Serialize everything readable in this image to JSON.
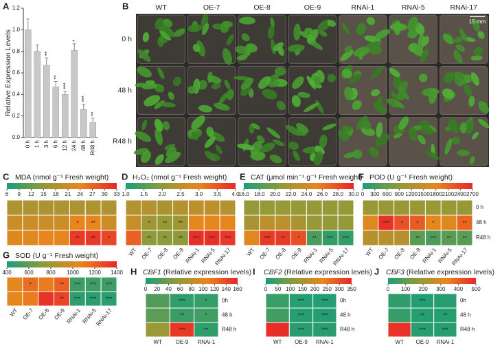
{
  "chart_data": [
    {
      "type": "bar",
      "panel": "A",
      "y_label": "Relative Expression Levels",
      "categories": [
        "0 h",
        "1 h",
        "3 h",
        "6 h",
        "12 h",
        "24 h",
        "48 h",
        "R48 h"
      ],
      "values": [
        1.0,
        0.8,
        0.67,
        0.47,
        0.4,
        0.81,
        0.26,
        0.14
      ],
      "errors": [
        0.1,
        0.06,
        0.07,
        0.05,
        0.03,
        0.06,
        0.05,
        0.04
      ],
      "annotations": [
        null,
        null,
        "**",
        "**",
        "***",
        "*",
        "***",
        "**"
      ],
      "ylim": [
        0,
        1.2
      ],
      "yticks": [
        {
          "value": 0,
          "label": "0.0"
        },
        {
          "value": 0.2,
          "label": "0.2"
        },
        {
          "value": 0.4,
          "label": "0.4"
        },
        {
          "value": 0.6,
          "label": "0.6"
        },
        {
          "value": 0.8,
          "label": "0.8"
        },
        {
          "value": 1.0,
          "label": "1.0"
        },
        {
          "value": 1.2,
          "label": "1.2"
        }
      ],
      "color": "#c8c8c8"
    },
    {
      "type": "image",
      "panel": "B",
      "columns": [
        "WT",
        "OE-7",
        "OE-8",
        "OE-9",
        "RNAi-1",
        "RNAi-5",
        "RNAi-17"
      ],
      "rows": [
        "0 h",
        "48 h",
        "R48 h"
      ],
      "scale_bar": "15 mm"
    },
    {
      "type": "heatmap",
      "panel": "C",
      "title": "MDA (nmol g⁻¹ Fresh weight)",
      "clim": [
        6,
        33
      ],
      "cticks": [
        6,
        9,
        12,
        15,
        18,
        21,
        24,
        27,
        30,
        33
      ],
      "colormap": [
        "#1a9e77",
        "#8f9a3a",
        "#e8861e",
        "#e8262a"
      ],
      "values": [
        [
          18,
          18,
          18,
          18,
          18,
          18,
          18
        ],
        [
          21,
          21,
          21,
          21,
          24,
          24,
          21
        ],
        [
          23,
          23,
          24,
          24,
          31,
          31,
          30
        ]
      ],
      "annotations": [
        [
          null,
          null,
          null,
          null,
          null,
          null,
          null
        ],
        [
          null,
          null,
          null,
          null,
          "*",
          "**",
          null
        ],
        [
          null,
          null,
          null,
          null,
          "**",
          "**",
          "*"
        ]
      ]
    },
    {
      "type": "heatmap",
      "panel": "D",
      "title": "H₂O₂ (nmol g⁻¹ Fresh weight)",
      "clim": [
        1.0,
        4.0
      ],
      "cticks": [
        {
          "value": 1.0,
          "label": "1.0"
        },
        1.5,
        {
          "value": 2.0,
          "label": "2.0"
        },
        2.5,
        {
          "value": 3.0,
          "label": "3.0"
        },
        3.5,
        {
          "value": 4.0,
          "label": "4.0"
        }
      ],
      "colormap": [
        "#1a9e77",
        "#8f9a3a",
        "#e8861e",
        "#e8262a"
      ],
      "columns": [
        "WT",
        "OE-7",
        "OE-8",
        "OE-9",
        "RNAi-1",
        "RNAi-5",
        "RNAi-17"
      ],
      "values": [
        [
          2.4,
          2.4,
          2.3,
          2.4,
          2.5,
          2.5,
          2.4
        ],
        [
          2.6,
          2.2,
          2.1,
          2.2,
          3.0,
          3.0,
          3.0
        ],
        [
          3.4,
          2.0,
          2.0,
          2.0,
          3.9,
          3.9,
          3.8
        ]
      ],
      "annotations": [
        [
          null,
          null,
          null,
          null,
          null,
          null,
          null
        ],
        [
          null,
          "*",
          "**",
          "**",
          null,
          null,
          null
        ],
        [
          null,
          "**",
          "**",
          "**",
          "***",
          "***",
          "***"
        ]
      ]
    },
    {
      "type": "heatmap",
      "panel": "E",
      "title": "CAT (μmol min⁻¹ g⁻¹ Fresh weight)",
      "clim": [
        16.0,
        30.0
      ],
      "cticks": [
        {
          "value": 16,
          "label": "16.0"
        },
        {
          "value": 18,
          "label": "18.0"
        },
        {
          "value": 20,
          "label": "20.0"
        },
        {
          "value": 22,
          "label": "22.0"
        },
        {
          "value": 24,
          "label": "24.0"
        },
        {
          "value": 26,
          "label": "26.0"
        },
        {
          "value": 28,
          "label": "28.0"
        },
        {
          "value": 30,
          "label": "30.0"
        }
      ],
      "colormap": [
        "#1a9e77",
        "#8f9a3a",
        "#e8861e",
        "#e8262a"
      ],
      "columns": [
        "WT",
        "OE-7",
        "OE-8",
        "OE-9",
        "RNAi-1",
        "RNAi-5",
        "RNAi-17"
      ],
      "values": [
        [
          21,
          21,
          21,
          21,
          21,
          21,
          21
        ],
        [
          22,
          23,
          23,
          22,
          21,
          21,
          21
        ],
        [
          25,
          29,
          29,
          28,
          18,
          17,
          17
        ]
      ],
      "annotations": [
        [
          null,
          null,
          null,
          null,
          null,
          null,
          null
        ],
        [
          null,
          null,
          null,
          null,
          null,
          null,
          null
        ],
        [
          null,
          "***",
          "**",
          "*",
          "**",
          "***",
          "***"
        ]
      ]
    },
    {
      "type": "heatmap",
      "panel": "F",
      "title": "POD (U g⁻¹ Fresh weight)",
      "clim": [
        0,
        2700
      ],
      "cticks": [
        0,
        300,
        600,
        900,
        1200,
        1500,
        1800,
        2100,
        2400,
        2700
      ],
      "colormap": [
        "#1a9e77",
        "#8f9a3a",
        "#e8861e",
        "#e8262a"
      ],
      "columns": [
        "WT",
        "OE-7",
        "OE-8",
        "OE-9",
        "RNAi-1",
        "RNAi-5",
        "RNAi-17"
      ],
      "rows": [
        "0 h",
        "48 h",
        "R48 h"
      ],
      "values": [
        [
          1000,
          1000,
          1000,
          1000,
          1000,
          1000,
          1000
        ],
        [
          1700,
          2600,
          2300,
          2200,
          1800,
          1700,
          2100
        ],
        [
          1300,
          1300,
          1300,
          500,
          400,
          500,
          500
        ]
      ],
      "annotations": [
        [
          null,
          null,
          null,
          null,
          null,
          null,
          null
        ],
        [
          null,
          "***",
          "*",
          "*",
          "*",
          null,
          "**"
        ],
        [
          null,
          null,
          null,
          "**",
          "***",
          "**",
          "**"
        ]
      ]
    },
    {
      "type": "heatmap",
      "panel": "G",
      "title": "SOD (U g⁻¹ Fresh weight)",
      "clim": [
        400,
        1400
      ],
      "cticks": [
        400,
        600,
        800,
        1000,
        1200,
        1400
      ],
      "colormap": [
        "#1a9e77",
        "#8f9a3a",
        "#e8861e",
        "#e8262a"
      ],
      "columns": [
        "WT",
        "OE-7",
        "OE-8",
        "OE-9",
        "RNAi-1",
        "RNAi-5",
        "RNAi-17"
      ],
      "values": [
        [
          1050,
          1150,
          1100,
          1200,
          500,
          500,
          500
        ],
        [
          1050,
          1100,
          1350,
          1300,
          450,
          450,
          450
        ]
      ],
      "annotations": [
        [
          null,
          "*",
          null,
          "**",
          "***",
          "***",
          "***"
        ],
        [
          null,
          null,
          null,
          "**",
          "***",
          "***",
          "***"
        ]
      ]
    },
    {
      "type": "heatmap",
      "panel": "H",
      "title_gene": "CBF1",
      "title": "(Relative expression levels)",
      "clim": [
        0,
        160
      ],
      "cticks": [
        0,
        20,
        40,
        60,
        80,
        100,
        120,
        140,
        160
      ],
      "colormap": [
        "#1a9e77",
        "#8f9a3a",
        "#e8861e",
        "#e8262a"
      ],
      "columns": [
        "WT",
        "OE-9",
        "RNAi-1"
      ],
      "rows": [
        "0h",
        "48 h",
        "R48 h"
      ],
      "values": [
        [
          25,
          10,
          12
        ],
        [
          30,
          15,
          18
        ],
        [
          60,
          150,
          10
        ]
      ],
      "annotations": [
        [
          null,
          "***",
          "*"
        ],
        [
          null,
          "**",
          "*"
        ],
        [
          null,
          "***",
          "**"
        ]
      ]
    },
    {
      "type": "heatmap",
      "panel": "I",
      "title_gene": "CBF2",
      "title": "(Relative expression levels)",
      "clim": [
        0,
        350
      ],
      "cticks": [
        0,
        50,
        100,
        150,
        200,
        250,
        300,
        350
      ],
      "colormap": [
        "#1a9e77",
        "#8f9a3a",
        "#e8861e",
        "#e8262a"
      ],
      "columns": [
        "WT",
        "OE-9",
        "RNAi-1"
      ],
      "rows": [
        "0h",
        "48 h",
        "R48 h"
      ],
      "values": [
        [
          30,
          10,
          10
        ],
        [
          40,
          10,
          10
        ],
        [
          340,
          15,
          15
        ]
      ],
      "annotations": [
        [
          null,
          "***",
          "***"
        ],
        [
          null,
          "***",
          "***"
        ],
        [
          null,
          "***",
          "***"
        ]
      ]
    },
    {
      "type": "heatmap",
      "panel": "J",
      "title_gene": "CBF3",
      "title": "(Relative expression levels)",
      "clim": [
        0,
        500
      ],
      "cticks": [
        0,
        100,
        200,
        300,
        400,
        500
      ],
      "colormap": [
        "#1a9e77",
        "#8f9a3a",
        "#e8861e",
        "#e8262a"
      ],
      "columns": [
        "WT",
        "OE-9",
        "RNAi-1"
      ],
      "rows": [
        "0h",
        "48 h",
        "R48 h"
      ],
      "values": [
        [
          30,
          10,
          20
        ],
        [
          40,
          15,
          15
        ],
        [
          480,
          20,
          20
        ]
      ],
      "annotations": [
        [
          null,
          "***",
          null
        ],
        [
          null,
          "**",
          "**"
        ],
        [
          null,
          "***",
          "***"
        ]
      ]
    }
  ]
}
